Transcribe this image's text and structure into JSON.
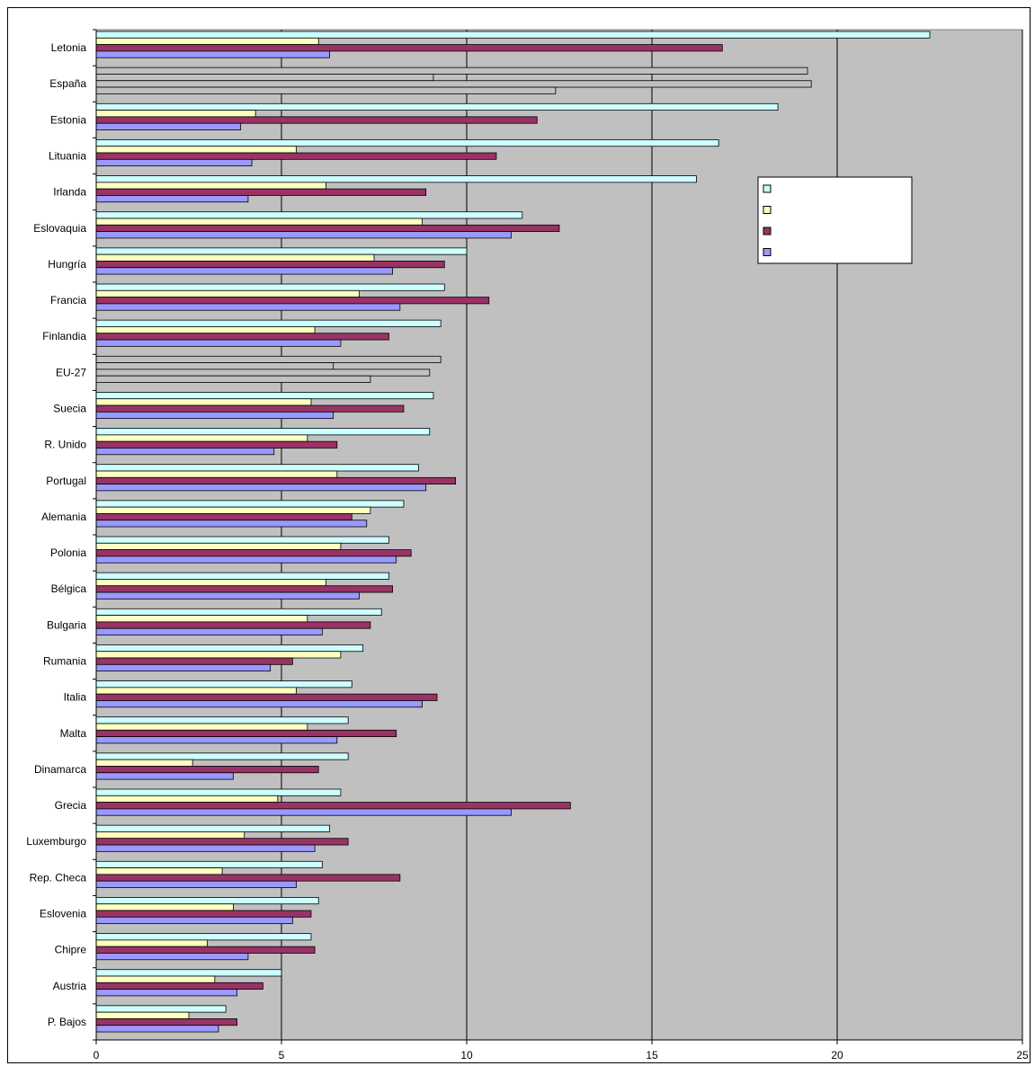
{
  "chart_data": {
    "type": "bar",
    "orientation": "horizontal",
    "categories": [
      "Letonia",
      "España",
      "Estonia",
      "Lituania",
      "Irlanda",
      "Eslovaquia",
      "Hungría",
      "Francia",
      "Finlandia",
      "EU-27",
      "Suecia",
      "R. Unido",
      "Portugal",
      "Alemania",
      "Polonia",
      "Bélgica",
      "Bulgaria",
      "Rumania",
      "Italia",
      "Malta",
      "Dinamarca",
      "Grecia",
      "Luxemburgo",
      "Rep. Checa",
      "Eslovenia",
      "Chipre",
      "Austria",
      "P. Bajos"
    ],
    "series": [
      {
        "color": "#ccffff",
        "values": [
          22.5,
          19.2,
          18.4,
          16.8,
          16.2,
          11.5,
          10.0,
          9.4,
          9.3,
          9.3,
          9.1,
          9.0,
          8.7,
          8.3,
          7.9,
          7.9,
          7.7,
          7.2,
          6.9,
          6.8,
          6.8,
          6.6,
          6.3,
          6.1,
          6.0,
          5.8,
          5.0,
          3.5
        ]
      },
      {
        "color": "#ffffc0",
        "values": [
          6.0,
          9.1,
          4.3,
          5.4,
          6.2,
          8.8,
          7.5,
          7.1,
          5.9,
          6.4,
          5.8,
          5.7,
          6.5,
          7.4,
          6.6,
          6.2,
          5.7,
          6.6,
          5.4,
          5.7,
          2.6,
          4.9,
          4.0,
          3.4,
          3.7,
          3.0,
          3.2,
          2.5
        ]
      },
      {
        "color": "#993366",
        "values": [
          16.9,
          19.3,
          11.9,
          10.8,
          8.9,
          12.5,
          9.4,
          10.6,
          7.9,
          9.0,
          8.3,
          6.5,
          9.7,
          6.9,
          8.5,
          8.0,
          7.4,
          5.3,
          9.2,
          8.1,
          6.0,
          12.8,
          6.8,
          8.2,
          5.8,
          5.9,
          4.5,
          3.8
        ]
      },
      {
        "color": "#9999ff",
        "values": [
          6.3,
          12.4,
          3.9,
          4.2,
          4.1,
          11.2,
          8.0,
          8.2,
          6.6,
          7.4,
          6.4,
          4.8,
          8.9,
          7.3,
          8.1,
          7.1,
          6.1,
          4.7,
          8.8,
          6.5,
          3.7,
          11.2,
          5.9,
          5.4,
          5.3,
          4.1,
          3.8,
          3.3
        ]
      }
    ],
    "highlight_categories": [
      "España",
      "EU-27"
    ],
    "highlight_color": "#c0c0c0",
    "xlim": [
      0,
      25
    ],
    "x_ticks": [
      0,
      5,
      10,
      15,
      20,
      25
    ],
    "plot_background": "#c0c0c0",
    "grid": true,
    "legend": "right",
    "title": "",
    "xlabel": "",
    "ylabel": ""
  }
}
